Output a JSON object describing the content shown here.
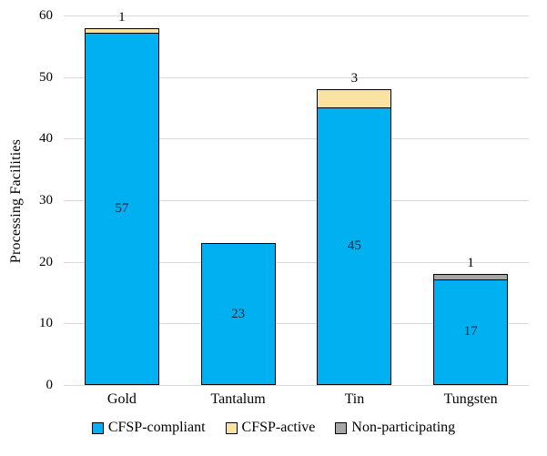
{
  "chart_data": {
    "type": "bar",
    "stacked": true,
    "title": "",
    "xlabel": "",
    "ylabel": "Processing Facilities",
    "ylim": [
      0,
      60
    ],
    "yticks": [
      0,
      10,
      20,
      30,
      40,
      50,
      60
    ],
    "categories": [
      "Gold",
      "Tantalum",
      "Tin",
      "Tungsten"
    ],
    "series": [
      {
        "name": "CFSP-compliant",
        "color": "#00B0F0",
        "values": [
          57,
          23,
          45,
          17
        ]
      },
      {
        "name": "CFSP-active",
        "color": "#FAE3A2",
        "values": [
          1,
          0,
          3,
          0
        ]
      },
      {
        "name": "Non-participating",
        "color": "#A6A6A6",
        "values": [
          0,
          0,
          0,
          1
        ]
      }
    ],
    "segment_value_labels": [
      "57",
      "23",
      "45",
      "17"
    ],
    "above_bar_labels": [
      "1",
      "",
      "3",
      "1"
    ],
    "legend_position": "bottom",
    "grid": true,
    "gridline_color": "#D9D9D9",
    "bar_border_color": "#000000",
    "value_label_color": "#1A2433"
  }
}
